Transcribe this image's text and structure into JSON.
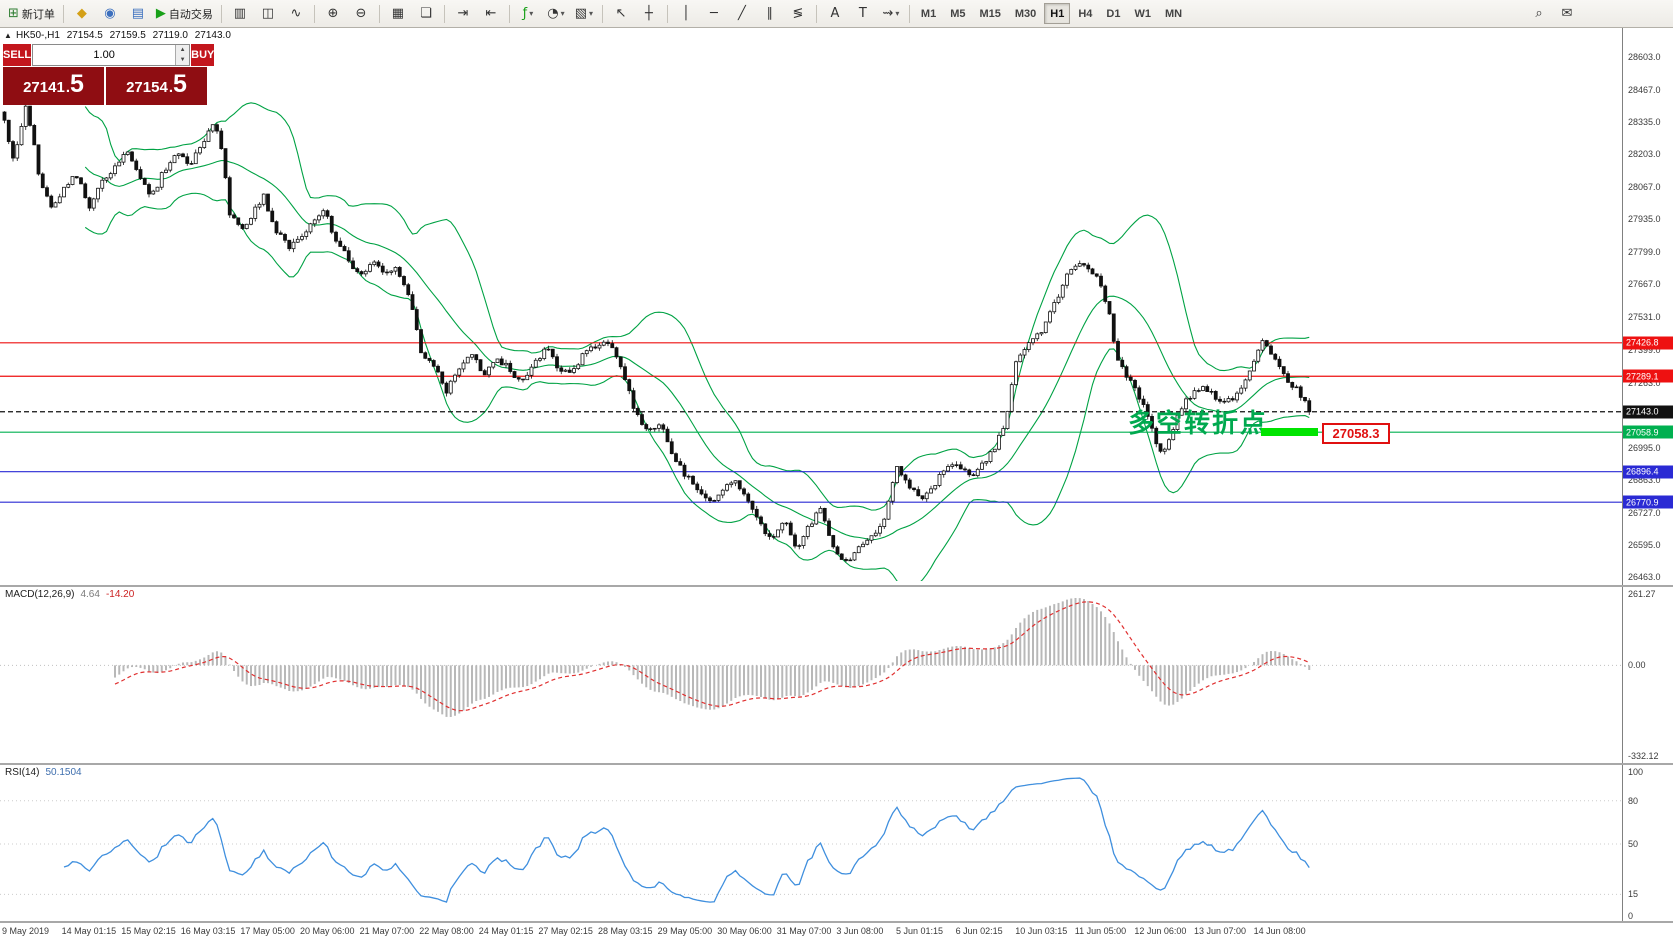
{
  "colors": {
    "bollinger": "#00a244",
    "hline_red": "#ee1111",
    "hline_green": "#00b050",
    "hline_blue": "#2a2ad4",
    "current_black": "#111111",
    "macd_hist": "#b8b8b8",
    "macd_signal": "#e03030",
    "rsi_line": "#3f8fde",
    "annotation_green": "#00a94f",
    "tag_red": "#e01010",
    "highlight_green": "#00e400",
    "panel_button_red": "#c3161d",
    "panel_price_red": "#8f0d12"
  },
  "toolbar": {
    "groups": [
      {
        "items": [
          {
            "name": "new-order-button",
            "icon": "new-order-icon",
            "glyph": "⊞",
            "color": "#2e7d32",
            "label": "新订单"
          }
        ]
      },
      {
        "items": [
          {
            "name": "market-watch-button",
            "icon": "market-watch-icon",
            "glyph": "◆",
            "color": "#d4a017"
          },
          {
            "name": "navigator-button",
            "icon": "navigator-icon",
            "glyph": "◉",
            "color": "#3b6fbe"
          },
          {
            "name": "terminal-button",
            "icon": "terminal-icon",
            "glyph": "▤",
            "color": "#3b6fbe"
          },
          {
            "name": "autotrading-button",
            "icon": "autotrading-play-icon",
            "glyph": "▶",
            "color": "#18a018",
            "label": "自动交易"
          }
        ]
      },
      {
        "items": [
          {
            "name": "bar-chart-button",
            "icon": "bar-chart-icon",
            "glyph": "▥"
          },
          {
            "name": "candlestick-button",
            "icon": "candlestick-icon",
            "glyph": "◫"
          },
          {
            "name": "line-chart-button",
            "icon": "line-chart-icon",
            "glyph": "∿"
          }
        ]
      },
      {
        "items": [
          {
            "name": "zoom-in-button",
            "icon": "zoom-in-icon",
            "glyph": "⊕"
          },
          {
            "name": "zoom-out-button",
            "icon": "zoom-out-icon",
            "glyph": "⊖"
          }
        ]
      },
      {
        "items": [
          {
            "name": "tile-windows-button",
            "icon": "tile-windows-icon",
            "glyph": "▦"
          },
          {
            "name": "cascade-windows-button",
            "icon": "cascade-windows-icon",
            "glyph": "❏"
          }
        ]
      },
      {
        "items": [
          {
            "name": "auto-scroll-button",
            "icon": "auto-scroll-icon",
            "glyph": "⇥"
          },
          {
            "name": "chart-shift-button",
            "icon": "chart-shift-icon",
            "glyph": "⇤"
          }
        ]
      },
      {
        "items": [
          {
            "name": "indicators-button",
            "icon": "indicators-icon",
            "glyph": "ƒ",
            "color": "#18a018",
            "arrow": true
          },
          {
            "name": "periods-button",
            "icon": "periods-icon",
            "glyph": "◔",
            "arrow": true
          },
          {
            "name": "templates-button",
            "icon": "templates-icon",
            "glyph": "▧",
            "arrow": true
          }
        ]
      },
      {
        "items": [
          {
            "name": "cursor-button",
            "icon": "cursor-icon",
            "glyph": "↖"
          },
          {
            "name": "crosshair-button",
            "icon": "crosshair-icon",
            "glyph": "┼"
          }
        ]
      },
      {
        "items": [
          {
            "name": "vertical-line-button",
            "icon": "vertical-line-icon",
            "glyph": "│"
          },
          {
            "name": "horizontal-line-button",
            "icon": "horizontal-line-icon",
            "glyph": "─"
          },
          {
            "name": "trendline-button",
            "icon": "trendline-icon",
            "glyph": "╱"
          },
          {
            "name": "channel-button",
            "icon": "channel-icon",
            "glyph": "∥"
          },
          {
            "name": "fibonacci-button",
            "icon": "fibonacci-icon",
            "glyph": "≶"
          }
        ]
      },
      {
        "items": [
          {
            "name": "text-button",
            "icon": "text-icon",
            "glyph": "A"
          },
          {
            "name": "text-label-button",
            "icon": "text-label-icon",
            "glyph": "T"
          },
          {
            "name": "arrows-button",
            "icon": "arrow-icon",
            "glyph": "⇝",
            "arrow": true
          }
        ]
      }
    ],
    "timeframes": [
      "M1",
      "M5",
      "M15",
      "M30",
      "H1",
      "H4",
      "D1",
      "W1",
      "MN"
    ],
    "active_timeframe": "H1",
    "right_items": [
      {
        "name": "search-button",
        "icon": "search-icon",
        "glyph": "⌕"
      },
      {
        "name": "community-button",
        "icon": "envelope-icon",
        "glyph": "✉"
      }
    ]
  },
  "symbol_line": {
    "collapse_glyph": "▲",
    "symbol_period": "HK50-,H1",
    "open": "27154.5",
    "high": "27159.5",
    "low": "27119.0",
    "close": "27143.0"
  },
  "trade_panel": {
    "sell_label": "SELL",
    "buy_label": "BUY",
    "lot_value": "1.00",
    "sell_price_int": "27141",
    "sell_price_dec": "5",
    "buy_price_int": "27154",
    "buy_price_dec": "5"
  },
  "annotation": {
    "text": "多空转折点"
  },
  "price_tag": {
    "text": "27058.3"
  },
  "macd": {
    "label": "MACD(12,26,9)",
    "main_value": "4.64",
    "signal_value": "-14.20"
  },
  "rsi": {
    "label": "RSI(14)",
    "value": "50.1504"
  },
  "chart_data": {
    "type": "candlestick",
    "symbol": "HK50-",
    "timeframe": "H1",
    "title": "HK50- H1 with Bollinger Bands, MACD(12,26,9), RSI(14)",
    "last_price": 27143.0,
    "price_range": [
      26463.0,
      28603.0
    ],
    "y_axis_ticks": [
      28603.0,
      28467.0,
      28335.0,
      28203.0,
      28067.0,
      27935.0,
      27799.0,
      27667.0,
      27531.0,
      27399.0,
      27263.0,
      26995.0,
      26863.0,
      26727.0,
      26595.0,
      26463.0
    ],
    "x_labels": [
      "9 May 2019",
      "14 May 01:15",
      "15 May 02:15",
      "16 May 03:15",
      "17 May 05:00",
      "20 May 06:00",
      "21 May 07:00",
      "22 May 08:00",
      "24 May 01:15",
      "27 May 02:15",
      "28 May 03:15",
      "29 May 05:00",
      "30 May 06:00",
      "31 May 07:00",
      "3 Jun 08:00",
      "5 Jun 01:15",
      "6 Jun 02:15",
      "10 Jun 03:15",
      "11 Jun 05:00",
      "12 Jun 06:00",
      "13 Jun 07:00",
      "14 Jun 08:00"
    ],
    "candle_count": 308,
    "close_path_anchors": [
      [
        0,
        28380
      ],
      [
        12,
        28180
      ],
      [
        25,
        28420
      ],
      [
        38,
        28100
      ],
      [
        50,
        27980
      ],
      [
        62,
        28060
      ],
      [
        75,
        28120
      ],
      [
        88,
        27990
      ],
      [
        100,
        28080
      ],
      [
        112,
        28150
      ],
      [
        125,
        28210
      ],
      [
        138,
        28100
      ],
      [
        150,
        28030
      ],
      [
        162,
        28130
      ],
      [
        175,
        28220
      ],
      [
        188,
        28160
      ],
      [
        200,
        28230
      ],
      [
        212,
        28340
      ],
      [
        220,
        28230
      ],
      [
        228,
        27960
      ],
      [
        240,
        27890
      ],
      [
        252,
        27960
      ],
      [
        262,
        28030
      ],
      [
        275,
        27890
      ],
      [
        288,
        27820
      ],
      [
        300,
        27860
      ],
      [
        312,
        27930
      ],
      [
        322,
        27980
      ],
      [
        332,
        27870
      ],
      [
        345,
        27790
      ],
      [
        358,
        27690
      ],
      [
        370,
        27760
      ],
      [
        382,
        27710
      ],
      [
        395,
        27740
      ],
      [
        408,
        27620
      ],
      [
        420,
        27380
      ],
      [
        432,
        27330
      ],
      [
        445,
        27230
      ],
      [
        458,
        27320
      ],
      [
        470,
        27380
      ],
      [
        482,
        27300
      ],
      [
        495,
        27360
      ],
      [
        508,
        27320
      ],
      [
        520,
        27260
      ],
      [
        532,
        27340
      ],
      [
        545,
        27400
      ],
      [
        558,
        27320
      ],
      [
        570,
        27300
      ],
      [
        582,
        27380
      ],
      [
        595,
        27420
      ],
      [
        608,
        27430
      ],
      [
        620,
        27330
      ],
      [
        632,
        27160
      ],
      [
        645,
        27060
      ],
      [
        658,
        27100
      ],
      [
        670,
        26980
      ],
      [
        682,
        26890
      ],
      [
        695,
        26830
      ],
      [
        708,
        26770
      ],
      [
        720,
        26820
      ],
      [
        732,
        26870
      ],
      [
        745,
        26780
      ],
      [
        758,
        26680
      ],
      [
        770,
        26620
      ],
      [
        782,
        26700
      ],
      [
        795,
        26580
      ],
      [
        808,
        26680
      ],
      [
        820,
        26740
      ],
      [
        832,
        26580
      ],
      [
        845,
        26520
      ],
      [
        858,
        26580
      ],
      [
        870,
        26640
      ],
      [
        882,
        26680
      ],
      [
        895,
        26920
      ],
      [
        905,
        26850
      ],
      [
        918,
        26780
      ],
      [
        930,
        26830
      ],
      [
        942,
        26900
      ],
      [
        955,
        26930
      ],
      [
        968,
        26870
      ],
      [
        980,
        26930
      ],
      [
        992,
        26980
      ],
      [
        1005,
        27120
      ],
      [
        1015,
        27360
      ],
      [
        1028,
        27420
      ],
      [
        1040,
        27480
      ],
      [
        1052,
        27580
      ],
      [
        1065,
        27700
      ],
      [
        1078,
        27760
      ],
      [
        1088,
        27730
      ],
      [
        1098,
        27690
      ],
      [
        1108,
        27540
      ],
      [
        1116,
        27350
      ],
      [
        1126,
        27280
      ],
      [
        1136,
        27220
      ],
      [
        1146,
        27130
      ],
      [
        1156,
        27000
      ],
      [
        1164,
        26980
      ],
      [
        1172,
        27080
      ],
      [
        1182,
        27170
      ],
      [
        1192,
        27230
      ],
      [
        1202,
        27250
      ],
      [
        1212,
        27210
      ],
      [
        1222,
        27170
      ],
      [
        1232,
        27200
      ],
      [
        1242,
        27260
      ],
      [
        1252,
        27340
      ],
      [
        1260,
        27430
      ],
      [
        1270,
        27380
      ],
      [
        1280,
        27300
      ],
      [
        1290,
        27260
      ],
      [
        1300,
        27210
      ],
      [
        1310,
        27143
      ]
    ],
    "overlays": {
      "bollinger_bands": {
        "period": 20,
        "deviation": 2
      }
    },
    "horizontal_lines": [
      {
        "price": 27426.8,
        "color_key": "hline_red",
        "style": "solid"
      },
      {
        "price": 27289.1,
        "color_key": "hline_red",
        "style": "solid"
      },
      {
        "price": 27143.0,
        "color_key": "current_black",
        "style": "dashed",
        "current": true
      },
      {
        "price": 27058.9,
        "color_key": "hline_green",
        "style": "solid"
      },
      {
        "price": 26896.4,
        "color_key": "hline_blue",
        "style": "solid"
      },
      {
        "price": 26770.9,
        "color_key": "hline_blue",
        "style": "solid"
      }
    ],
    "indicators": [
      {
        "name": "MACD",
        "params": "12,26,9",
        "main_value": 4.64,
        "signal_value": -14.2,
        "scale": [
          261.27,
          0.0,
          -332.12
        ]
      },
      {
        "name": "RSI",
        "params": "14",
        "value": 50.1504,
        "scale": [
          100,
          80,
          50,
          15,
          0
        ],
        "levels": [
          80,
          50,
          15
        ]
      }
    ]
  }
}
